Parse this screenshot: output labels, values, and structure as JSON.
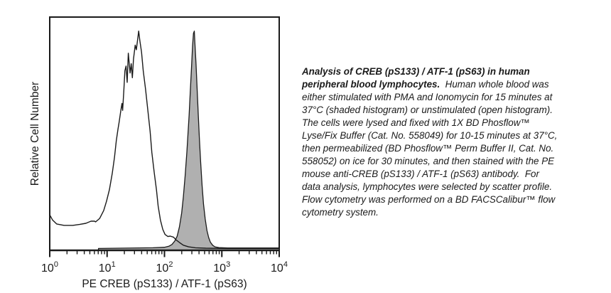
{
  "figure": {
    "caption_lines": [
      [
        {
          "t": "Analysis of CREB (pS133) / ATF-1 (pS63) in human",
          "bold": true
        }
      ],
      [
        {
          "t": "peripheral blood lymphocytes.",
          "bold": true
        },
        {
          "t": "  Human whole blood was",
          "bold": false
        }
      ],
      [
        {
          "t": "either stimulated with PMA and Ionomycin for 15 minutes at",
          "bold": false
        }
      ],
      [
        {
          "t": "37°C (shaded histogram) or unstimulated (open histogram).",
          "bold": false
        }
      ],
      [
        {
          "t": "The cells were lysed and fixed with 1X BD Phosflow™",
          "bold": false
        }
      ],
      [
        {
          "t": "Lyse/Fix Buffer (Cat. No. 558049) for 10-15 minutes at 37°C,",
          "bold": false
        }
      ],
      [
        {
          "t": "then permeabilized (BD Phosflow™ Perm Buffer II, Cat. No.",
          "bold": false
        }
      ],
      [
        {
          "t": "558052) on ice for 30 minutes, and then stained with the PE",
          "bold": false
        }
      ],
      [
        {
          "t": "mouse anti-CREB (pS133) / ATF-1 (pS63) antibody.  For",
          "bold": false
        }
      ],
      [
        {
          "t": "data analysis, lymphocytes were selected by scatter profile.",
          "bold": false
        }
      ],
      [
        {
          "t": "Flow cytometry was performed on a BD FACSCalibur™ flow",
          "bold": false
        }
      ],
      [
        {
          "t": "cytometry system.",
          "bold": false
        }
      ]
    ]
  },
  "chart_data": {
    "type": "area",
    "subtype": "flow-cytometry-overlay-histogram",
    "title": "",
    "xlabel": "PE CREB (pS133) / ATF-1 (pS63)",
    "ylabel": "Relative Cell Number",
    "x_scale": "log10",
    "x_range_decades": [
      0,
      4
    ],
    "x_ticks": [
      {
        "mantissa": "10",
        "exponent": "0"
      },
      {
        "mantissa": "10",
        "exponent": "1"
      },
      {
        "mantissa": "10",
        "exponent": "2"
      },
      {
        "mantissa": "10",
        "exponent": "3"
      },
      {
        "mantissa": "10",
        "exponent": "4"
      }
    ],
    "minor_ticks_log": true,
    "grid": false,
    "legend_position": "none",
    "y_axis_ticks": "none (relative scale)",
    "colors": {
      "line": "#1a1a1a",
      "shaded_fill": "#b0b0b0",
      "background": "#ffffff"
    },
    "series": [
      {
        "name": "unstimulated (open histogram)",
        "style": "open",
        "peak_x_approx": 35,
        "peak_log10_x": 1.55,
        "points_log10x_relheight": [
          [
            0,
            0.152
          ],
          [
            0.05,
            0.13
          ],
          [
            0.12,
            0.113
          ],
          [
            0.25,
            0.107
          ],
          [
            0.4,
            0.107
          ],
          [
            0.52,
            0.111
          ],
          [
            0.63,
            0.116
          ],
          [
            0.72,
            0.125
          ],
          [
            0.78,
            0.125
          ],
          [
            0.8,
            0.122
          ],
          [
            0.87,
            0.137
          ],
          [
            0.94,
            0.17
          ],
          [
            0.99,
            0.21
          ],
          [
            1.04,
            0.26
          ],
          [
            1.09,
            0.33
          ],
          [
            1.13,
            0.4
          ],
          [
            1.16,
            0.47
          ],
          [
            1.19,
            0.52
          ],
          [
            1.21,
            0.55
          ],
          [
            1.24,
            0.6
          ],
          [
            1.26,
            0.63
          ],
          [
            1.27,
            0.6
          ],
          [
            1.29,
            0.68
          ],
          [
            1.31,
            0.77
          ],
          [
            1.33,
            0.79
          ],
          [
            1.35,
            0.72
          ],
          [
            1.37,
            0.845
          ],
          [
            1.4,
            0.76
          ],
          [
            1.42,
            0.8
          ],
          [
            1.44,
            0.74
          ],
          [
            1.46,
            0.82
          ],
          [
            1.49,
            0.88
          ],
          [
            1.51,
            0.86
          ],
          [
            1.54,
            0.92
          ],
          [
            1.55,
            0.94
          ],
          [
            1.57,
            0.9
          ],
          [
            1.6,
            0.85
          ],
          [
            1.63,
            0.77
          ],
          [
            1.67,
            0.69
          ],
          [
            1.71,
            0.6
          ],
          [
            1.75,
            0.51
          ],
          [
            1.78,
            0.42
          ],
          [
            1.82,
            0.335
          ],
          [
            1.86,
            0.26
          ],
          [
            1.89,
            0.19
          ],
          [
            1.93,
            0.13
          ],
          [
            1.97,
            0.09
          ],
          [
            2.01,
            0.068
          ],
          [
            2.06,
            0.059
          ],
          [
            2.1,
            0.061
          ],
          [
            2.16,
            0.056
          ],
          [
            2.2,
            0.045
          ],
          [
            2.27,
            0.032
          ],
          [
            2.33,
            0.022
          ],
          [
            2.42,
            0.015
          ],
          [
            2.54,
            0.011
          ],
          [
            2.72,
            0.009
          ],
          [
            3.1,
            0.008
          ],
          [
            4.0,
            0.008
          ]
        ]
      },
      {
        "name": "PMA + Ionomycin stimulated (shaded histogram)",
        "style": "shaded",
        "peak_x_approx": 320,
        "peak_log10_x": 2.51,
        "points_log10x_relheight": [
          [
            0.85,
            0.008
          ],
          [
            1.2,
            0.009
          ],
          [
            1.8,
            0.011
          ],
          [
            2.0,
            0.013
          ],
          [
            2.08,
            0.018
          ],
          [
            2.13,
            0.025
          ],
          [
            2.18,
            0.04
          ],
          [
            2.22,
            0.06
          ],
          [
            2.26,
            0.1
          ],
          [
            2.3,
            0.16
          ],
          [
            2.33,
            0.23
          ],
          [
            2.36,
            0.32
          ],
          [
            2.39,
            0.42
          ],
          [
            2.41,
            0.5
          ],
          [
            2.43,
            0.58
          ],
          [
            2.45,
            0.68
          ],
          [
            2.47,
            0.78
          ],
          [
            2.49,
            0.88
          ],
          [
            2.505,
            0.93
          ],
          [
            2.52,
            0.94
          ],
          [
            2.53,
            0.89
          ],
          [
            2.55,
            0.8
          ],
          [
            2.57,
            0.69
          ],
          [
            2.59,
            0.58
          ],
          [
            2.61,
            0.47
          ],
          [
            2.63,
            0.38
          ],
          [
            2.655,
            0.28
          ],
          [
            2.68,
            0.2
          ],
          [
            2.71,
            0.135
          ],
          [
            2.74,
            0.085
          ],
          [
            2.77,
            0.055
          ],
          [
            2.8,
            0.035
          ],
          [
            2.84,
            0.022
          ],
          [
            2.88,
            0.015
          ],
          [
            2.95,
            0.012
          ],
          [
            3.1,
            0.01
          ],
          [
            4.0,
            0.01
          ]
        ]
      }
    ]
  }
}
